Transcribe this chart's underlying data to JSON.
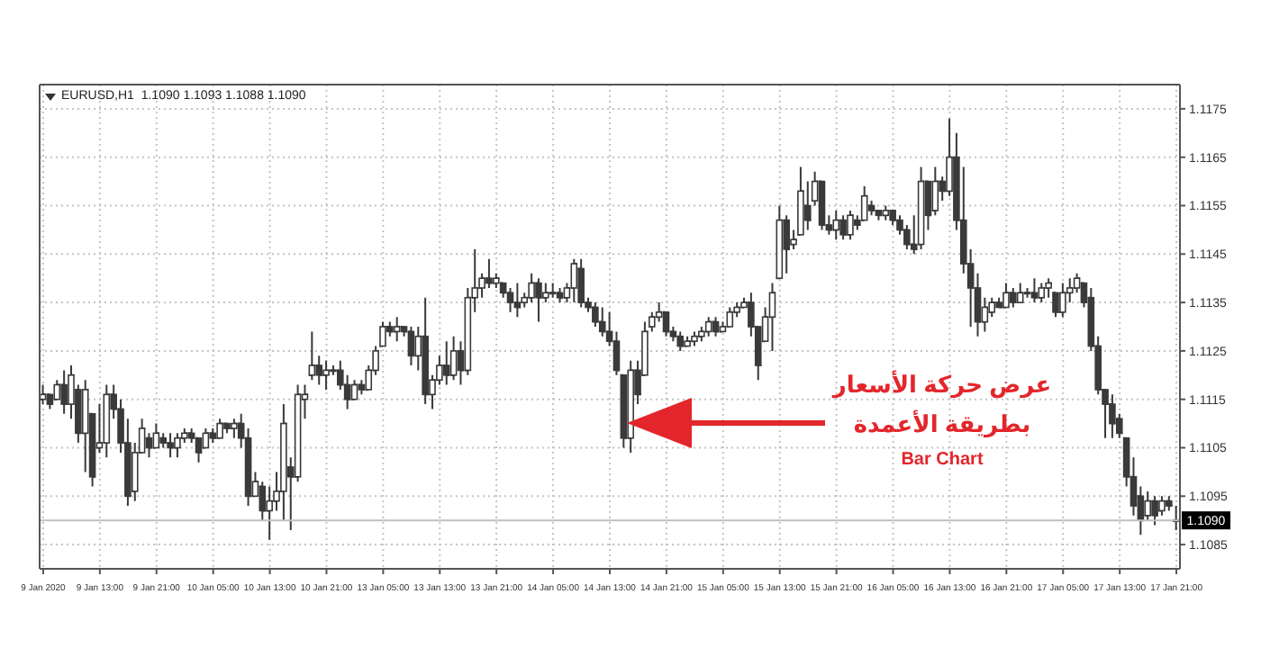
{
  "chart_data": {
    "type": "candlestick",
    "title": "EURUSD,H1  1.1090 1.1093 1.1088 1.1090",
    "annotations": [
      "عرض حركة الأسعار",
      "بطريقة الأعمدة",
      "Bar Chart"
    ],
    "categories": [
      "9 Jan 2020",
      null,
      null,
      null,
      null,
      null,
      null,
      null,
      "9 Jan 13:00",
      null,
      null,
      null,
      null,
      null,
      null,
      null,
      "9 Jan 21:00",
      null,
      null,
      null,
      null,
      null,
      null,
      null,
      "10 Jan 05:00",
      null,
      null,
      null,
      null,
      null,
      null,
      null,
      "10 Jan 13:00",
      null,
      null,
      null,
      null,
      null,
      null,
      null,
      "10 Jan 21:00",
      null,
      null,
      null,
      null,
      null,
      null,
      null,
      "13 Jan 05:00",
      null,
      null,
      null,
      null,
      null,
      null,
      null,
      "13 Jan 13:00",
      null,
      null,
      null,
      null,
      null,
      null,
      null,
      "13 Jan 21:00",
      null,
      null,
      null,
      null,
      null,
      null,
      null,
      "14 Jan 05:00",
      null,
      null,
      null,
      null,
      null,
      null,
      null,
      "14 Jan 13:00",
      null,
      null,
      null,
      null,
      null,
      null,
      null,
      "14 Jan 21:00",
      null,
      null,
      null,
      null,
      null,
      null,
      null,
      "15 Jan 05:00",
      null,
      null,
      null,
      null,
      null,
      null,
      null,
      "15 Jan 13:00",
      null,
      null,
      null,
      null,
      null,
      null,
      null,
      "15 Jan 21:00",
      null,
      null,
      null,
      null,
      null,
      null,
      null,
      "16 Jan 05:00",
      null,
      null,
      null,
      null,
      null,
      null,
      null,
      "16 Jan 13:00",
      null,
      null,
      null,
      null,
      null,
      null,
      null,
      "16 Jan 21:00",
      null,
      null,
      null,
      null,
      null,
      null,
      null,
      "17 Jan 05:00",
      null,
      null,
      null,
      null,
      null,
      null,
      null,
      "17 Jan 13:00",
      null,
      null,
      null,
      null,
      null,
      null,
      null,
      "17 Jan 21:00"
    ],
    "ohlc": [
      [
        1.1115,
        1.1118,
        1.1114,
        1.1116
      ],
      [
        1.1116,
        1.1116,
        1.1113,
        1.1114
      ],
      [
        1.1115,
        1.1119,
        1.1115,
        1.1118
      ],
      [
        1.1118,
        1.1121,
        1.1112,
        1.1114
      ],
      [
        1.1114,
        1.1122,
        1.1111,
        1.112
      ],
      [
        1.1117,
        1.1118,
        1.1106,
        1.1108
      ],
      [
        1.1108,
        1.1119,
        1.11,
        1.1117
      ],
      [
        1.1112,
        1.1112,
        1.1097,
        1.1099
      ],
      [
        1.1105,
        1.1114,
        1.1104,
        1.1106
      ],
      [
        1.1106,
        1.1118,
        1.1103,
        1.1116
      ],
      [
        1.1116,
        1.1118,
        1.1111,
        1.1113
      ],
      [
        1.1113,
        1.1115,
        1.1104,
        1.1106
      ],
      [
        1.1106,
        1.1111,
        1.1093,
        1.1095
      ],
      [
        1.1096,
        1.1106,
        1.1094,
        1.1104
      ],
      [
        1.1104,
        1.1111,
        1.1104,
        1.1109
      ],
      [
        1.1107,
        1.1108,
        1.1103,
        1.1105
      ],
      [
        1.1105,
        1.111,
        1.1105,
        1.1108
      ],
      [
        1.1107,
        1.1108,
        1.1105,
        1.1106
      ],
      [
        1.1106,
        1.1108,
        1.1103,
        1.1105
      ],
      [
        1.1105,
        1.1108,
        1.1103,
        1.1107
      ],
      [
        1.1107,
        1.1109,
        1.1106,
        1.1108
      ],
      [
        1.1108,
        1.1109,
        1.1106,
        1.1107
      ],
      [
        1.1107,
        1.1107,
        1.1102,
        1.1104
      ],
      [
        1.1105,
        1.1109,
        1.1105,
        1.1108
      ],
      [
        1.1108,
        1.1109,
        1.1106,
        1.1107
      ],
      [
        1.1107,
        1.1111,
        1.1107,
        1.111
      ],
      [
        1.111,
        1.111,
        1.1108,
        1.1109
      ],
      [
        1.1109,
        1.1111,
        1.1107,
        1.111
      ],
      [
        1.111,
        1.1112,
        1.1105,
        1.1107
      ],
      [
        1.1107,
        1.1109,
        1.1093,
        1.1095
      ],
      [
        1.1095,
        1.11,
        1.1095,
        1.1098
      ],
      [
        1.1097,
        1.1098,
        1.109,
        1.1092
      ],
      [
        1.1092,
        1.1097,
        1.1086,
        1.1094
      ],
      [
        1.1094,
        1.11,
        1.1092,
        1.1096
      ],
      [
        1.1096,
        1.1114,
        1.109,
        1.111
      ],
      [
        1.1101,
        1.1103,
        1.1088,
        1.1099
      ],
      [
        1.1099,
        1.1118,
        1.1098,
        1.1116
      ],
      [
        1.1115,
        1.1118,
        1.1111,
        1.1116
      ],
      [
        1.112,
        1.1129,
        1.1119,
        1.1122
      ],
      [
        1.1122,
        1.1124,
        1.1118,
        1.112
      ],
      [
        1.112,
        1.1123,
        1.1117,
        1.1121
      ],
      [
        1.1121,
        1.1122,
        1.112,
        1.1121
      ],
      [
        1.1121,
        1.1123,
        1.1117,
        1.1118
      ],
      [
        1.1118,
        1.112,
        1.1113,
        1.1115
      ],
      [
        1.1115,
        1.1119,
        1.1115,
        1.1118
      ],
      [
        1.1118,
        1.1119,
        1.1116,
        1.1117
      ],
      [
        1.1117,
        1.1122,
        1.1117,
        1.1121
      ],
      [
        1.1121,
        1.1126,
        1.112,
        1.1125
      ],
      [
        1.1126,
        1.1131,
        1.1126,
        1.113
      ],
      [
        1.113,
        1.1131,
        1.1128,
        1.1129
      ],
      [
        1.1129,
        1.1132,
        1.1127,
        1.113
      ],
      [
        1.113,
        1.113,
        1.1128,
        1.1129
      ],
      [
        1.1129,
        1.113,
        1.1122,
        1.1124
      ],
      [
        1.1124,
        1.113,
        1.1121,
        1.1128
      ],
      [
        1.1128,
        1.1136,
        1.1114,
        1.1116
      ],
      [
        1.1116,
        1.112,
        1.1113,
        1.1119
      ],
      [
        1.1119,
        1.1124,
        1.1118,
        1.1122
      ],
      [
        1.1122,
        1.1127,
        1.1118,
        1.112
      ],
      [
        1.112,
        1.1128,
        1.1119,
        1.1125
      ],
      [
        1.1125,
        1.1127,
        1.1118,
        1.1121
      ],
      [
        1.1121,
        1.1138,
        1.112,
        1.1136
      ],
      [
        1.1136,
        1.1146,
        1.1133,
        1.1138
      ],
      [
        1.1138,
        1.1141,
        1.1136,
        1.114
      ],
      [
        1.114,
        1.1144,
        1.1138,
        1.1139
      ],
      [
        1.1139,
        1.1141,
        1.1138,
        1.114
      ],
      [
        1.1139,
        1.1139,
        1.1136,
        1.1137
      ],
      [
        1.1137,
        1.1138,
        1.1133,
        1.1135
      ],
      [
        1.1135,
        1.1139,
        1.1132,
        1.1134
      ],
      [
        1.1135,
        1.1137,
        1.1134,
        1.1136
      ],
      [
        1.1136,
        1.1141,
        1.1135,
        1.1139
      ],
      [
        1.1139,
        1.114,
        1.1131,
        1.1136
      ],
      [
        1.1136,
        1.1139,
        1.1135,
        1.1137
      ],
      [
        1.1137,
        1.1139,
        1.1136,
        1.1137
      ],
      [
        1.1137,
        1.1138,
        1.1135,
        1.1136
      ],
      [
        1.1136,
        1.1139,
        1.1135,
        1.1138
      ],
      [
        1.1138,
        1.1144,
        1.1135,
        1.1143
      ],
      [
        1.1142,
        1.1144,
        1.1134,
        1.1135
      ],
      [
        1.1135,
        1.1136,
        1.1133,
        1.1134
      ],
      [
        1.1134,
        1.1135,
        1.113,
        1.1131
      ],
      [
        1.1131,
        1.1134,
        1.1128,
        1.1129
      ],
      [
        1.1129,
        1.1133,
        1.1126,
        1.1127
      ],
      [
        1.1127,
        1.1129,
        1.112,
        1.1121
      ],
      [
        1.112,
        1.112,
        1.1105,
        1.1107
      ],
      [
        1.1107,
        1.1123,
        1.1104,
        1.1121
      ],
      [
        1.1121,
        1.1123,
        1.1114,
        1.1116
      ],
      [
        1.112,
        1.1131,
        1.112,
        1.1129
      ],
      [
        1.113,
        1.1133,
        1.1129,
        1.1132
      ],
      [
        1.1132,
        1.1135,
        1.1131,
        1.1133
      ],
      [
        1.1133,
        1.1133,
        1.1128,
        1.1129
      ],
      [
        1.1129,
        1.113,
        1.1127,
        1.1128
      ],
      [
        1.1128,
        1.1129,
        1.1125,
        1.1126
      ],
      [
        1.1126,
        1.1128,
        1.1126,
        1.1127
      ],
      [
        1.1127,
        1.1129,
        1.1126,
        1.1128
      ],
      [
        1.1128,
        1.113,
        1.1127,
        1.1129
      ],
      [
        1.1129,
        1.1132,
        1.1128,
        1.1131
      ],
      [
        1.1131,
        1.1132,
        1.1128,
        1.1129
      ],
      [
        1.1129,
        1.1131,
        1.1129,
        1.113
      ],
      [
        1.113,
        1.1134,
        1.113,
        1.1133
      ],
      [
        1.1133,
        1.1135,
        1.1132,
        1.1134
      ],
      [
        1.1134,
        1.1136,
        1.1134,
        1.1135
      ],
      [
        1.1135,
        1.1137,
        1.1128,
        1.113
      ],
      [
        1.113,
        1.113,
        1.1119,
        1.1122
      ],
      [
        1.1127,
        1.1134,
        1.1127,
        1.1132
      ],
      [
        1.1132,
        1.1139,
        1.1125,
        1.1137
      ],
      [
        1.114,
        1.1155,
        1.114,
        1.1152
      ],
      [
        1.1152,
        1.1153,
        1.1141,
        1.1146
      ],
      [
        1.1147,
        1.115,
        1.1146,
        1.1148
      ],
      [
        1.1149,
        1.1163,
        1.1149,
        1.1158
      ],
      [
        1.1155,
        1.116,
        1.115,
        1.1152
      ],
      [
        1.1156,
        1.1162,
        1.1155,
        1.116
      ],
      [
        1.116,
        1.116,
        1.115,
        1.1151
      ],
      [
        1.1151,
        1.1153,
        1.1149,
        1.115
      ],
      [
        1.115,
        1.1154,
        1.1148,
        1.1152
      ],
      [
        1.1152,
        1.1153,
        1.1148,
        1.1149
      ],
      [
        1.1149,
        1.1154,
        1.1148,
        1.1153
      ],
      [
        1.1152,
        1.1153,
        1.115,
        1.1151
      ],
      [
        1.1152,
        1.1159,
        1.1152,
        1.1157
      ],
      [
        1.1155,
        1.1156,
        1.1153,
        1.1154
      ],
      [
        1.1154,
        1.1154,
        1.1152,
        1.1153
      ],
      [
        1.1153,
        1.1155,
        1.1152,
        1.1154
      ],
      [
        1.1154,
        1.1154,
        1.1151,
        1.1152
      ],
      [
        1.1152,
        1.1153,
        1.1149,
        1.115
      ],
      [
        1.115,
        1.1151,
        1.1146,
        1.1147
      ],
      [
        1.1147,
        1.1153,
        1.1145,
        1.1146
      ],
      [
        1.1147,
        1.1163,
        1.1146,
        1.116
      ],
      [
        1.116,
        1.116,
        1.115,
        1.1153
      ],
      [
        1.1154,
        1.1163,
        1.1153,
        1.116
      ],
      [
        1.116,
        1.1161,
        1.1156,
        1.1158
      ],
      [
        1.1158,
        1.1173,
        1.1157,
        1.1165
      ],
      [
        1.1165,
        1.117,
        1.115,
        1.1152
      ],
      [
        1.1152,
        1.1163,
        1.1141,
        1.1143
      ],
      [
        1.1143,
        1.1146,
        1.113,
        1.1138
      ],
      [
        1.1138,
        1.1141,
        1.1128,
        1.1131
      ],
      [
        1.1131,
        1.1136,
        1.1129,
        1.1134
      ],
      [
        1.1133,
        1.1136,
        1.1132,
        1.1135
      ],
      [
        1.1135,
        1.1136,
        1.1134,
        1.1134
      ],
      [
        1.1134,
        1.1139,
        1.1134,
        1.1137
      ],
      [
        1.1137,
        1.1138,
        1.1134,
        1.1135
      ],
      [
        1.1135,
        1.1139,
        1.1135,
        1.1137
      ],
      [
        1.1137,
        1.1138,
        1.1136,
        1.1137
      ],
      [
        1.1137,
        1.114,
        1.1135,
        1.1136
      ],
      [
        1.1136,
        1.1139,
        1.1135,
        1.1138
      ],
      [
        1.1138,
        1.114,
        1.1136,
        1.1139
      ],
      [
        1.1137,
        1.1137,
        1.1132,
        1.1133
      ],
      [
        1.1133,
        1.1139,
        1.1132,
        1.1137
      ],
      [
        1.1137,
        1.114,
        1.1135,
        1.1138
      ],
      [
        1.1138,
        1.1141,
        1.1137,
        1.114
      ],
      [
        1.1139,
        1.1139,
        1.1134,
        1.1135
      ],
      [
        1.1136,
        1.1138,
        1.1125,
        1.1126
      ],
      [
        1.1126,
        1.1128,
        1.1116,
        1.1117
      ],
      [
        1.1117,
        1.1117,
        1.1107,
        1.1114
      ],
      [
        1.1114,
        1.1116,
        1.1107,
        1.111
      ],
      [
        1.1111,
        1.1112,
        1.1107,
        1.1108
      ],
      [
        1.1107,
        1.1107,
        1.1097,
        1.1099
      ],
      [
        1.1099,
        1.1103,
        1.1091,
        1.1093
      ],
      [
        1.1095,
        1.1097,
        1.1087,
        1.109
      ],
      [
        1.1091,
        1.1096,
        1.109,
        1.1094
      ],
      [
        1.1094,
        1.1095,
        1.1089,
        1.1091
      ],
      [
        1.1092,
        1.1095,
        1.1091,
        1.1094
      ],
      [
        1.1094,
        1.1095,
        1.1092,
        1.1093
      ],
      [
        1.109,
        1.1093,
        1.1088,
        1.109
      ]
    ],
    "color": "#3a3a3a",
    "ylim": [
      1.108,
      1.118
    ],
    "yticks": [
      1.1085,
      1.1095,
      1.1105,
      1.1115,
      1.1125,
      1.1135,
      1.1145,
      1.1155,
      1.1165,
      1.1175
    ],
    "grid": true,
    "ref_lines": [
      {
        "axis": "y",
        "value": 1.109,
        "label": "1.1090",
        "color": "#c0c0c0"
      }
    ]
  }
}
